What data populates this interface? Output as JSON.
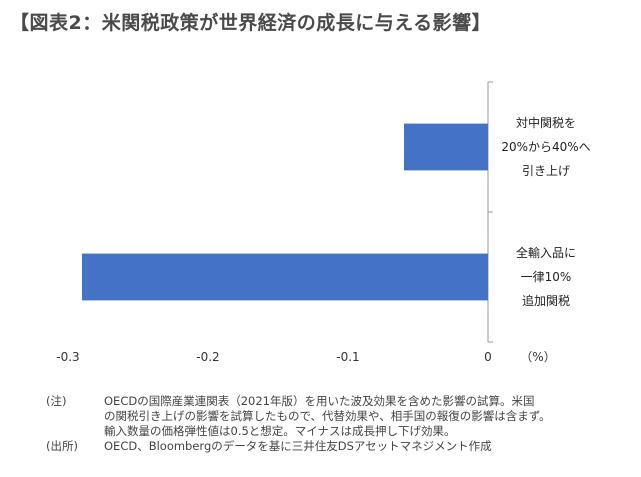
{
  "title": "【図表2：米関税政策が世界経済の成長に与える影響】",
  "chart_data": {
    "type": "bar",
    "orientation": "horizontal",
    "categories": [
      [
        "対中関税を",
        "20%から40%へ",
        "引き上げ"
      ],
      [
        "全輸入品に",
        "一律10%",
        "追加関税"
      ]
    ],
    "values": [
      -0.06,
      -0.29
    ],
    "xlim": [
      -0.3,
      0
    ],
    "xticks": [
      "-0.3",
      "-0.2",
      "-0.1",
      "0"
    ],
    "xunit": "（%）",
    "bar_color": "#4472C4",
    "legend": "none",
    "grid": false
  },
  "notes": [
    {
      "label": "(注)",
      "lines": [
        "OECDの国際産業連関表（2021年版）を用いた波及効果を含めた影響の試算。米国",
        "の関税引き上げの影響を試算したもので、代替効果や、相手国の報復の影響は含まず。",
        "輸入数量の価格弾性値は0.5と想定。マイナスは成長押し下げ効果。"
      ]
    },
    {
      "label": "(出所)",
      "lines": [
        "OECD、Bloombergのデータを基に三井住友DSアセットマネジメント作成"
      ]
    }
  ]
}
